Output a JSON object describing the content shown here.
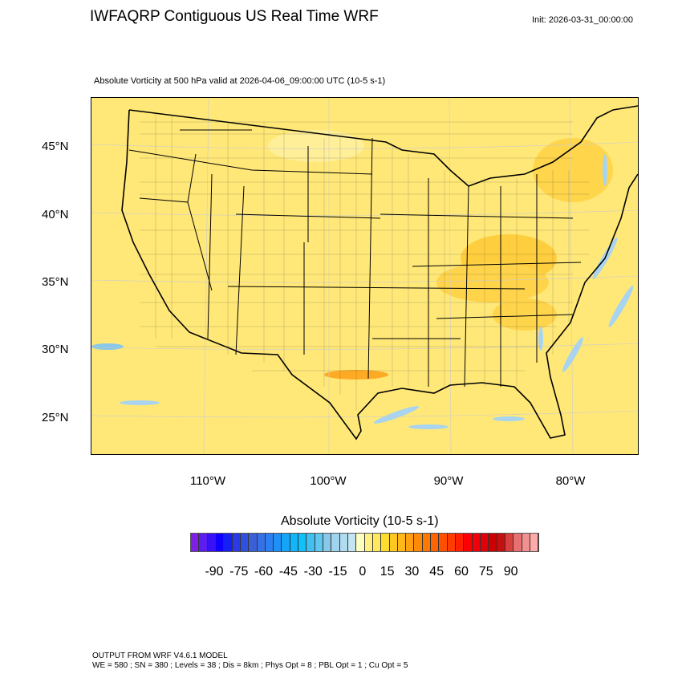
{
  "title": "IWFAQRP Contiguous US Real Time WRF",
  "init": "Init: 2026-03-31_00:00:00",
  "subtitle": "Absolute Vorticity at 500 hPa valid at 2026-04-06_09:00:00 UTC   (10-5 s-1)",
  "lat_labels": [
    "45°N",
    "40°N",
    "35°N",
    "30°N",
    "25°N"
  ],
  "lon_labels": [
    "110°W",
    "100°W",
    "90°W",
    "80°W"
  ],
  "colorbar": {
    "title": "Absolute Vorticity  (10-5 s-1)",
    "labels": [
      "-90",
      "-75",
      "-60",
      "-45",
      "-30",
      "-15",
      "0",
      "15",
      "30",
      "45",
      "60",
      "75",
      "90"
    ],
    "colors": [
      "#7e1fe8",
      "#5a1ef0",
      "#3a10f5",
      "#1000ff",
      "#1420f5",
      "#2a3ae8",
      "#3050e0",
      "#3a60d8",
      "#3670e8",
      "#2a80f0",
      "#1f90f5",
      "#15a5f8",
      "#10b5fa",
      "#10c0fa",
      "#40c0f0",
      "#60c8f0",
      "#88c8e8",
      "#a0d4ee",
      "#b0dcf0",
      "#c4e4f4",
      "#ffffc0",
      "#fff080",
      "#ffe860",
      "#ffdc30",
      "#ffc820",
      "#ffb818",
      "#ffa010",
      "#ff8a08",
      "#ff7800",
      "#ff6400",
      "#ff5000",
      "#ff3c00",
      "#ff2000",
      "#ff0000",
      "#f00008",
      "#e0000a",
      "#cc0000",
      "#c41010",
      "#d84040",
      "#e87070",
      "#f09090",
      "#ffaaaa"
    ]
  },
  "footer": {
    "line1": "OUTPUT FROM WRF V4.6.1 MODEL",
    "line2": "WE = 580 ; SN = 380 ; Levels = 38 ; Dis = 8km ; Phys Opt = 8 ; PBL Opt = 1 ; Cu Opt = 5"
  }
}
